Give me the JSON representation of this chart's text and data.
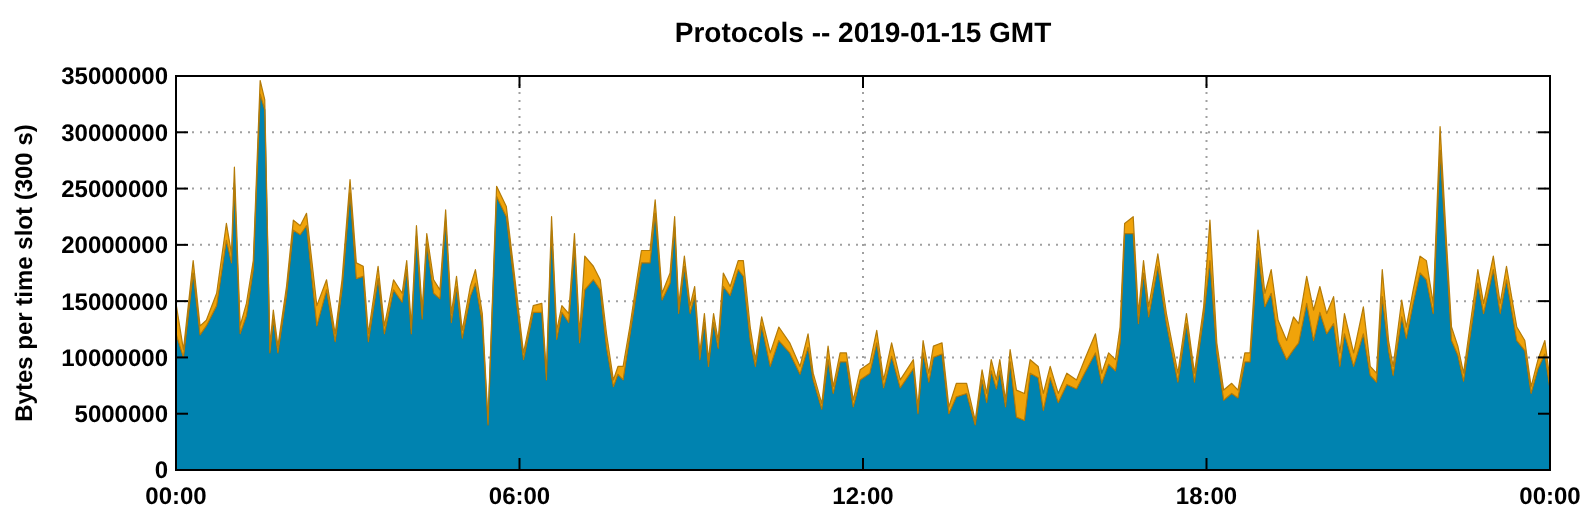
{
  "chart_data": {
    "type": "area",
    "stacked": true,
    "title": "Protocols -- 2019-01-15 GMT",
    "ylabel": "Bytes per time slot (300 s)",
    "grid": true,
    "xlim": [
      0,
      24
    ],
    "xticks": [
      {
        "value": 0,
        "label": "00:00"
      },
      {
        "value": 6,
        "label": "06:00"
      },
      {
        "value": 12,
        "label": "12:00"
      },
      {
        "value": 18,
        "label": "18:00"
      },
      {
        "value": 24,
        "label": "00:00"
      }
    ],
    "ylim": [
      0,
      35000000
    ],
    "yticks": [
      0,
      5000000,
      10000000,
      15000000,
      20000000,
      25000000,
      30000000,
      35000000
    ],
    "x": [
      0,
      0.13,
      0.3,
      0.42,
      0.53,
      0.71,
      0.88,
      0.97,
      1.02,
      1.12,
      1.23,
      1.35,
      1.47,
      1.55,
      1.64,
      1.7,
      1.78,
      1.93,
      2.05,
      2.17,
      2.28,
      2.46,
      2.63,
      2.78,
      2.9,
      3.04,
      3.15,
      3.27,
      3.36,
      3.53,
      3.64,
      3.8,
      3.95,
      4.03,
      4.11,
      4.2,
      4.3,
      4.38,
      4.5,
      4.61,
      4.71,
      4.81,
      4.9,
      5.0,
      5.14,
      5.23,
      5.35,
      5.45,
      5.6,
      5.77,
      5.95,
      6.07,
      6.24,
      6.39,
      6.47,
      6.56,
      6.65,
      6.74,
      6.86,
      6.96,
      7.05,
      7.14,
      7.29,
      7.41,
      7.52,
      7.64,
      7.72,
      7.81,
      7.93,
      8.05,
      8.13,
      8.28,
      8.37,
      8.49,
      8.63,
      8.71,
      8.78,
      8.88,
      8.98,
      9.06,
      9.15,
      9.23,
      9.3,
      9.39,
      9.47,
      9.56,
      9.68,
      9.82,
      9.91,
      10.03,
      10.12,
      10.23,
      10.38,
      10.53,
      10.72,
      10.9,
      11.04,
      11.13,
      11.28,
      11.39,
      11.48,
      11.6,
      11.71,
      11.83,
      11.95,
      12.12,
      12.24,
      12.36,
      12.5,
      12.65,
      12.88,
      12.96,
      13.05,
      13.15,
      13.23,
      13.38,
      13.5,
      13.63,
      13.81,
      13.96,
      14.08,
      14.16,
      14.24,
      14.33,
      14.39,
      14.49,
      14.57,
      14.68,
      14.82,
      14.92,
      15.06,
      15.15,
      15.27,
      15.41,
      15.56,
      15.73,
      15.87,
      16.06,
      16.17,
      16.29,
      16.41,
      16.49,
      16.57,
      16.72,
      16.81,
      16.9,
      16.99,
      17.15,
      17.3,
      17.5,
      17.65,
      17.79,
      17.95,
      18.06,
      18.18,
      18.3,
      18.44,
      18.55,
      18.67,
      18.76,
      18.9,
      19.02,
      19.13,
      19.25,
      19.4,
      19.52,
      19.61,
      19.75,
      19.87,
      19.98,
      20.1,
      20.22,
      20.33,
      20.41,
      20.57,
      20.74,
      20.86,
      20.97,
      21.07,
      21.18,
      21.26,
      21.41,
      21.49,
      21.61,
      21.73,
      21.84,
      21.96,
      22.08,
      22.19,
      22.28,
      22.39,
      22.49,
      22.6,
      22.74,
      22.84,
      23.01,
      23.13,
      23.24,
      23.42,
      23.56,
      23.67,
      23.79,
      23.91,
      24
    ],
    "series": [
      {
        "color": "#0083b0",
        "values": [
          12100000,
          10000000,
          17500000,
          12000000,
          12800000,
          14600000,
          20400000,
          18400000,
          25500000,
          12100000,
          13700000,
          17800000,
          33400000,
          32000000,
          10400000,
          13400000,
          10400000,
          15500000,
          21300000,
          20900000,
          21700000,
          12800000,
          16000000,
          11400000,
          16000000,
          24600000,
          17000000,
          17200000,
          11400000,
          17000000,
          12100000,
          16000000,
          14900000,
          17800000,
          12100000,
          20800000,
          13400000,
          20100000,
          15700000,
          15200000,
          22200000,
          13100000,
          16300000,
          11700000,
          15400000,
          16600000,
          13100000,
          4000000,
          24300000,
          22500000,
          14800000,
          9800000,
          14000000,
          14000000,
          8000000,
          21300000,
          11600000,
          14000000,
          13100000,
          19800000,
          11300000,
          16000000,
          16900000,
          16000000,
          10900000,
          7400000,
          8500000,
          8000000,
          12000000,
          16000000,
          18400000,
          18400000,
          22800000,
          15100000,
          16600000,
          21600000,
          13900000,
          18100000,
          13900000,
          15500000,
          9800000,
          13100000,
          9200000,
          13100000,
          10800000,
          16300000,
          15500000,
          17800000,
          17200000,
          11500000,
          9200000,
          12800000,
          9200000,
          11500000,
          10400000,
          8500000,
          10900000,
          8000000,
          5400000,
          9800000,
          6800000,
          9600000,
          9600000,
          5600000,
          8000000,
          8600000,
          11300000,
          7300000,
          10100000,
          7300000,
          9000000,
          5000000,
          10400000,
          7800000,
          10000000,
          10300000,
          5000000,
          6500000,
          6800000,
          4000000,
          8000000,
          6000000,
          8800000,
          7200000,
          8800000,
          5600000,
          9600000,
          4700000,
          4400000,
          8600000,
          8200000,
          5300000,
          8200000,
          6000000,
          7600000,
          7200000,
          8600000,
          10400000,
          7700000,
          9400000,
          8800000,
          11300000,
          21000000,
          21000000,
          13000000,
          17500000,
          13600000,
          18100000,
          13000000,
          7800000,
          13000000,
          7800000,
          13600000,
          18600000,
          10400000,
          6200000,
          6800000,
          6400000,
          9600000,
          9600000,
          19500000,
          14500000,
          15700000,
          11500000,
          9800000,
          10700000,
          11300000,
          14800000,
          11500000,
          14000000,
          12100000,
          13000000,
          9200000,
          12100000,
          9200000,
          12100000,
          8400000,
          7800000,
          15400000,
          10600000,
          8400000,
          13600000,
          11700000,
          14800000,
          17500000,
          16900000,
          13900000,
          28400000,
          19200000,
          11500000,
          10200000,
          7900000,
          11700000,
          16600000,
          13900000,
          17800000,
          13900000,
          16900000,
          11500000,
          10600000,
          6800000,
          9000000,
          10300000,
          7200000
        ]
      },
      {
        "color": "#f0a30a",
        "values": [
          2700000,
          700000,
          1100000,
          800000,
          500000,
          1100000,
          1500000,
          800000,
          1400000,
          700000,
          1100000,
          800000,
          1200000,
          900000,
          600000,
          800000,
          600000,
          800000,
          900000,
          800000,
          1100000,
          1800000,
          900000,
          700000,
          900000,
          1200000,
          1400000,
          900000,
          700000,
          1100000,
          700000,
          900000,
          800000,
          800000,
          700000,
          900000,
          800000,
          900000,
          1200000,
          800000,
          900000,
          800000,
          900000,
          700000,
          900000,
          1200000,
          800000,
          400000,
          900000,
          900000,
          900000,
          600000,
          600000,
          800000,
          600000,
          1200000,
          800000,
          600000,
          800000,
          1200000,
          800000,
          3000000,
          1200000,
          900000,
          1200000,
          600000,
          700000,
          1200000,
          800000,
          900000,
          1100000,
          1100000,
          1200000,
          600000,
          900000,
          900000,
          700000,
          900000,
          700000,
          800000,
          600000,
          800000,
          600000,
          800000,
          700000,
          1200000,
          800000,
          800000,
          1400000,
          1200000,
          600000,
          800000,
          1200000,
          1200000,
          900000,
          700000,
          1200000,
          600000,
          500000,
          1200000,
          600000,
          800000,
          800000,
          600000,
          900000,
          900000,
          1100000,
          700000,
          1200000,
          700000,
          800000,
          600000,
          1100000,
          800000,
          1000000,
          1000000,
          600000,
          1200000,
          900000,
          400000,
          900000,
          800000,
          1000000,
          800000,
          1000000,
          600000,
          1100000,
          2400000,
          2400000,
          1200000,
          1000000,
          1500000,
          1000000,
          800000,
          1000000,
          800000,
          1200000,
          1700000,
          900000,
          1000000,
          1000000,
          1400000,
          900000,
          1500000,
          900000,
          1100000,
          900000,
          1100000,
          900000,
          800000,
          900000,
          800000,
          900000,
          3600000,
          900000,
          900000,
          900000,
          700000,
          800000,
          800000,
          1800000,
          1200000,
          2100000,
          1800000,
          1700000,
          2900000,
          1700000,
          2400000,
          2700000,
          2300000,
          1800000,
          2400000,
          1200000,
          1800000,
          1200000,
          2400000,
          800000,
          800000,
          2400000,
          900000,
          800000,
          1500000,
          1000000,
          1200000,
          1500000,
          1700000,
          900000,
          2100000,
          1200000,
          1200000,
          800000,
          700000,
          1000000,
          1200000,
          900000,
          1200000,
          900000,
          1200000,
          1200000,
          900000,
          600000,
          800000,
          1200000,
          800000
        ]
      }
    ]
  }
}
